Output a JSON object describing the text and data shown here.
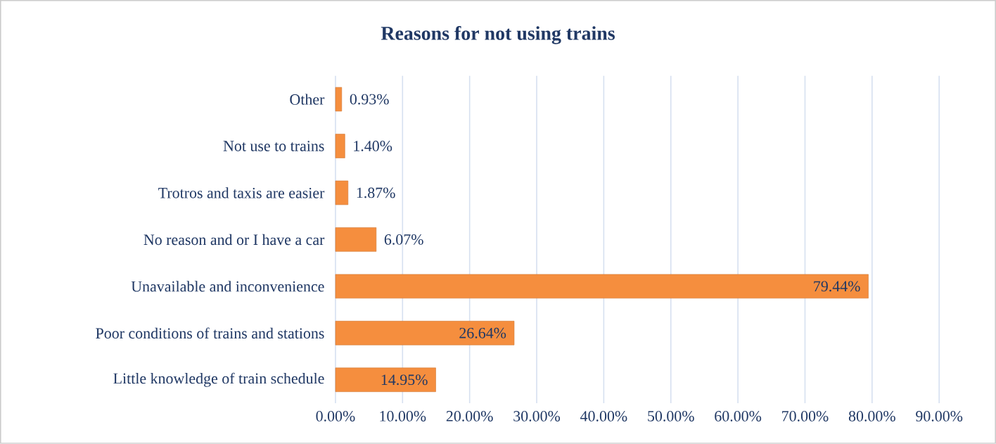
{
  "chart_data": {
    "type": "bar",
    "orientation": "horizontal",
    "title": "Reasons for not using trains",
    "categories": [
      "Other",
      "Not use to trains",
      "Trotros and taxis are easier",
      "No reason and  or I have a car",
      "Unavailable and inconvenience",
      "Poor conditions of trains and stations",
      "Little knowledge of train schedule"
    ],
    "values": [
      0.93,
      1.4,
      1.87,
      6.07,
      79.44,
      26.64,
      14.95
    ],
    "value_labels": [
      "0.93%",
      "1.40%",
      "1.87%",
      "6.07%",
      "79.44%",
      "26.64%",
      "14.95%"
    ],
    "color": "#f58e3e",
    "xlim": [
      0,
      90
    ],
    "xticks": [
      {
        "value": 0,
        "label": "0.00%"
      },
      {
        "value": 10,
        "label": "10.00%"
      },
      {
        "value": 20,
        "label": "20.00%"
      },
      {
        "value": 30,
        "label": "30.00%"
      },
      {
        "value": 40,
        "label": "40.00%"
      },
      {
        "value": 50,
        "label": "50.00%"
      },
      {
        "value": 60,
        "label": "60.00%"
      },
      {
        "value": 70,
        "label": "70.00%"
      },
      {
        "value": 80,
        "label": "80.00%"
      },
      {
        "value": 90,
        "label": "90.00%"
      }
    ],
    "grid": "x"
  }
}
